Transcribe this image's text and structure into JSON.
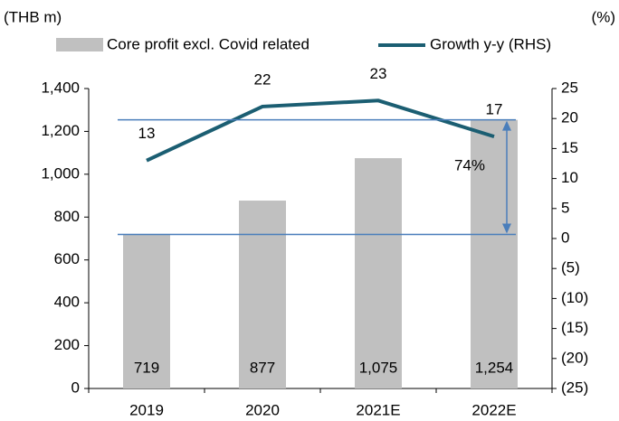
{
  "chart_data": {
    "type": "bar",
    "y_label": "(THB m)",
    "y2_label": "(%)",
    "categories": [
      "2019",
      "2020",
      "2021E",
      "2022E"
    ],
    "series": [
      {
        "name": "Core profit excl. Covid related",
        "type": "bar",
        "color": "#c0c0c0",
        "values": [
          719,
          877,
          1075,
          1254
        ],
        "value_labels": [
          "719",
          "877",
          "1,075",
          "1,254"
        ]
      },
      {
        "name": "Growth y-y (RHS)",
        "type": "line",
        "axis": "y2",
        "color": "#1b5e72",
        "values": [
          13,
          22,
          23,
          17
        ]
      }
    ],
    "ylim": [
      0,
      1400
    ],
    "yticks": [
      0,
      200,
      400,
      600,
      800,
      {
        "value": 1000,
        "label": "1,000"
      },
      {
        "value": 1200,
        "label": "1,200"
      },
      {
        "value": 1400,
        "label": "1,400"
      }
    ],
    "y2lim": [
      -25,
      25
    ],
    "y2ticks": [
      {
        "value": -25,
        "label": "(25)"
      },
      {
        "value": -20,
        "label": "(20)"
      },
      {
        "value": -15,
        "label": "(15)"
      },
      {
        "value": -10,
        "label": "(10)"
      },
      {
        "value": -5,
        "label": "(5)"
      },
      0,
      5,
      10,
      15,
      20,
      25
    ],
    "annotation": "74%",
    "legend": "top"
  }
}
